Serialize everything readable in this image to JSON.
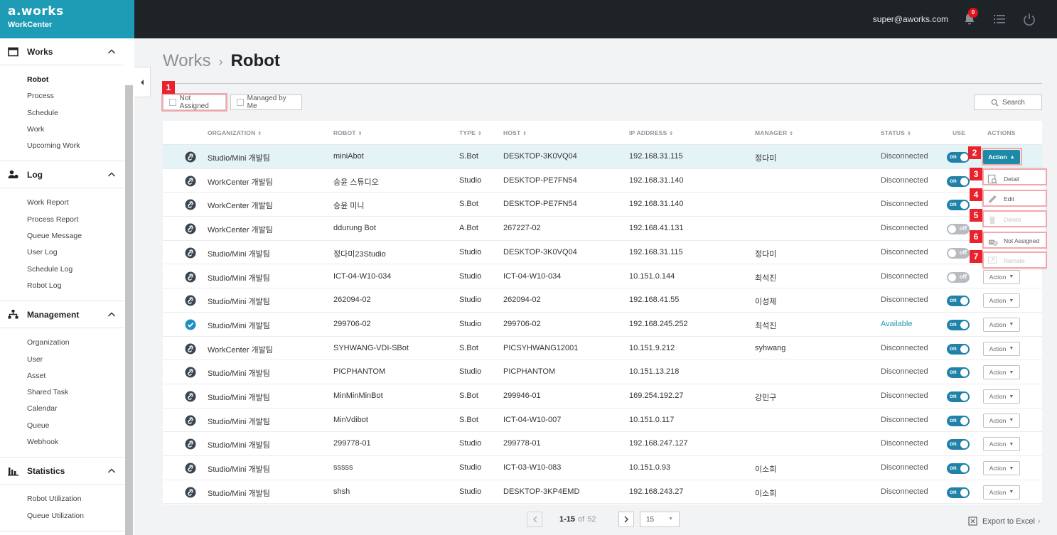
{
  "brand": {
    "logo": "a.works",
    "subtitle": "WorkCenter"
  },
  "header": {
    "user_email": "super@aworks.com",
    "notification_count": "0"
  },
  "sidebar": {
    "sections": [
      {
        "title": "Works",
        "icon": "calendar-icon",
        "items": [
          "Robot",
          "Process",
          "Schedule",
          "Work",
          "Upcoming Work"
        ],
        "active": "Robot"
      },
      {
        "title": "Log",
        "icon": "user-log-icon",
        "items": [
          "Work Report",
          "Process Report",
          "Queue Message",
          "User Log",
          "Schedule Log",
          "Robot Log"
        ]
      },
      {
        "title": "Management",
        "icon": "sitemap-icon",
        "items": [
          "Organization",
          "User",
          "Asset",
          "Shared Task",
          "Calendar",
          "Queue",
          "Webhook"
        ]
      },
      {
        "title": "Statistics",
        "icon": "bar-chart-icon",
        "items": [
          "Robot Utilization",
          "Queue Utilization"
        ]
      }
    ]
  },
  "breadcrumb": {
    "parent": "Works",
    "separator": "›",
    "current": "Robot"
  },
  "filters": {
    "not_assigned": "Not Assigned",
    "managed_by_me": "Managed by Me",
    "search": "Search"
  },
  "markers": [
    "1",
    "2",
    "3",
    "4",
    "5",
    "6",
    "7"
  ],
  "table": {
    "columns": [
      "ORGANIZATION",
      "ROBOT",
      "TYPE",
      "HOST",
      "IP ADDRESS",
      "MANAGER",
      "STATUS",
      "USE",
      "ACTIONS"
    ],
    "sortable": [
      true,
      true,
      true,
      true,
      true,
      true,
      true,
      false,
      false
    ],
    "action_label": "Action",
    "toggle_on": "on",
    "toggle_off": "off",
    "rows": [
      {
        "org": "Studio/Mini 개발팀",
        "robot": "miniAbot",
        "type": "S.Bot",
        "host": "DESKTOP-3K0VQ04",
        "ip": "192.168.31.115",
        "manager": "정다미",
        "status": "Disconnected",
        "use": true,
        "icon": "link-icon",
        "selected": true
      },
      {
        "org": "WorkCenter 개발팀",
        "robot": "승윤 스튜디오",
        "type": "Studio",
        "host": "DESKTOP-PE7FN54",
        "ip": "192.168.31.140",
        "manager": "",
        "status": "Disconnected",
        "use": true,
        "icon": "link-icon"
      },
      {
        "org": "WorkCenter 개발팀",
        "robot": "승윤 미니",
        "type": "S.Bot",
        "host": "DESKTOP-PE7FN54",
        "ip": "192.168.31.140",
        "manager": "",
        "status": "Disconnected",
        "use": true,
        "icon": "link-icon"
      },
      {
        "org": "WorkCenter 개발팀",
        "robot": "ddurung Bot",
        "type": "A.Bot",
        "host": "267227-02",
        "ip": "192.168.41.131",
        "manager": "",
        "status": "Disconnected",
        "use": false,
        "icon": "link-icon"
      },
      {
        "org": "Studio/Mini 개발팀",
        "robot": "정다미23Studio",
        "type": "Studio",
        "host": "DESKTOP-3K0VQ04",
        "ip": "192.168.31.115",
        "manager": "정다미",
        "status": "Disconnected",
        "use": false,
        "icon": "link-icon"
      },
      {
        "org": "Studio/Mini 개발팀",
        "robot": "ICT-04-W10-034",
        "type": "Studio",
        "host": "ICT-04-W10-034",
        "ip": "10.151.0.144",
        "manager": "최석진",
        "status": "Disconnected",
        "use": false,
        "icon": "link-icon"
      },
      {
        "org": "Studio/Mini 개발팀",
        "robot": "262094-02",
        "type": "Studio",
        "host": "262094-02",
        "ip": "192.168.41.55",
        "manager": "이성제",
        "status": "Disconnected",
        "use": true,
        "icon": "link-icon"
      },
      {
        "org": "Studio/Mini 개발팀",
        "robot": "299706-02",
        "type": "Studio",
        "host": "299706-02",
        "ip": "192.168.245.252",
        "manager": "최석진",
        "status": "Available",
        "use": true,
        "icon": "check-circle-icon"
      },
      {
        "org": "WorkCenter 개발팀",
        "robot": "SYHWANG-VDI-SBot",
        "type": "S.Bot",
        "host": "PICSYHWANG12001",
        "ip": "10.151.9.212",
        "manager": "syhwang",
        "status": "Disconnected",
        "use": true,
        "icon": "link-icon"
      },
      {
        "org": "Studio/Mini 개발팀",
        "robot": "PICPHANTOM",
        "type": "Studio",
        "host": "PICPHANTOM",
        "ip": "10.151.13.218",
        "manager": "",
        "status": "Disconnected",
        "use": true,
        "icon": "link-icon"
      },
      {
        "org": "Studio/Mini 개발팀",
        "robot": "MinMinMinBot",
        "type": "S.Bot",
        "host": "299946-01",
        "ip": "169.254.192.27",
        "manager": "강민구",
        "status": "Disconnected",
        "use": true,
        "icon": "link-icon"
      },
      {
        "org": "Studio/Mini 개발팀",
        "robot": "MinVdibot",
        "type": "S.Bot",
        "host": "ICT-04-W10-007",
        "ip": "10.151.0.117",
        "manager": "",
        "status": "Disconnected",
        "use": true,
        "icon": "link-icon"
      },
      {
        "org": "Studio/Mini 개발팀",
        "robot": "299778-01",
        "type": "Studio",
        "host": "299778-01",
        "ip": "192.168.247.127",
        "manager": "",
        "status": "Disconnected",
        "use": true,
        "icon": "link-icon"
      },
      {
        "org": "Studio/Mini 개발팀",
        "robot": "sssss",
        "type": "Studio",
        "host": "ICT-03-W10-083",
        "ip": "10.151.0.93",
        "manager": "이소희",
        "status": "Disconnected",
        "use": true,
        "icon": "link-icon"
      },
      {
        "org": "Studio/Mini 개발팀",
        "robot": "shsh",
        "type": "Studio",
        "host": "DESKTOP-3KP4EMD",
        "ip": "192.168.243.27",
        "manager": "이소희",
        "status": "Disconnected",
        "use": true,
        "icon": "link-icon"
      }
    ]
  },
  "action_menu": {
    "items": [
      {
        "label": "Detail",
        "icon": "detail-icon",
        "disabled": false
      },
      {
        "label": "Edit",
        "icon": "pencil-icon",
        "disabled": false
      },
      {
        "label": "Delete",
        "icon": "trash-icon",
        "disabled": true
      },
      {
        "label": "Not Assigned",
        "icon": "robot-unassign-icon",
        "disabled": false
      },
      {
        "label": "Remote",
        "icon": "remote-icon",
        "disabled": true
      }
    ]
  },
  "pagination": {
    "range": "1-15",
    "of_label": "of",
    "total": "52",
    "page_size": "15"
  },
  "export": {
    "label": "Export to Excel",
    "arrow": "›"
  },
  "colors": {
    "accent": "#1e9bb5",
    "toggle_on": "#2082a8",
    "marker": "#e8232d",
    "topbar": "#1e2328"
  }
}
